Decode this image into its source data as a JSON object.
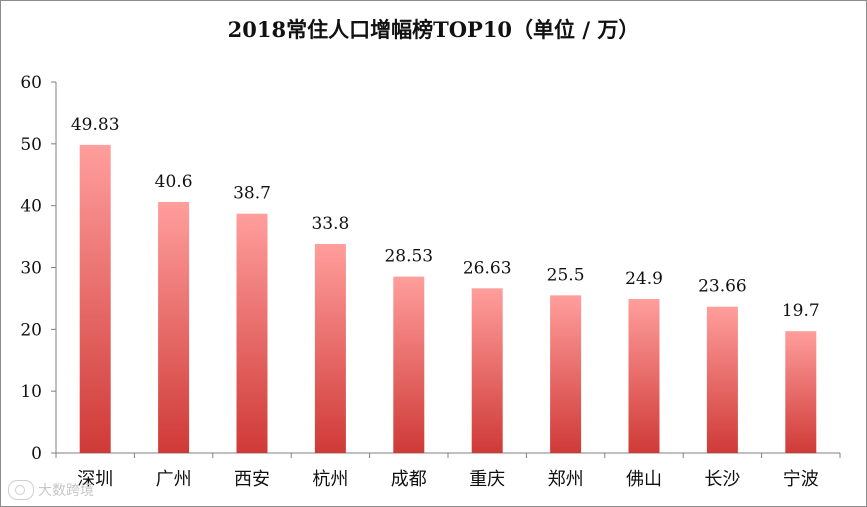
{
  "page": {
    "title": "2018常住人口增幅榜TOP10（单位 / 万）",
    "watermark": "大数跨境"
  },
  "chart_data": {
    "type": "bar",
    "title": "2018常住人口增幅榜TOP10（单位 / 万）",
    "categories": [
      "深圳",
      "广州",
      "西安",
      "杭州",
      "成都",
      "重庆",
      "郑州",
      "佛山",
      "长沙",
      "宁波"
    ],
    "values": [
      49.83,
      40.6,
      38.7,
      33.8,
      28.53,
      26.63,
      25.5,
      24.9,
      23.66,
      19.7
    ],
    "data_labels": [
      "49.83",
      "40.6",
      "38.7",
      "33.8",
      "28.53",
      "26.63",
      "25.5",
      "24.9",
      "23.66",
      "19.7"
    ],
    "ylim": [
      0,
      60
    ],
    "yticks": [
      0,
      10,
      20,
      30,
      40,
      50,
      60
    ],
    "grid": false,
    "colors": {
      "bar_top": "#ff9e9c",
      "bar_bottom": "#cf3a37",
      "axis": "#808080",
      "text": "#111111"
    }
  }
}
